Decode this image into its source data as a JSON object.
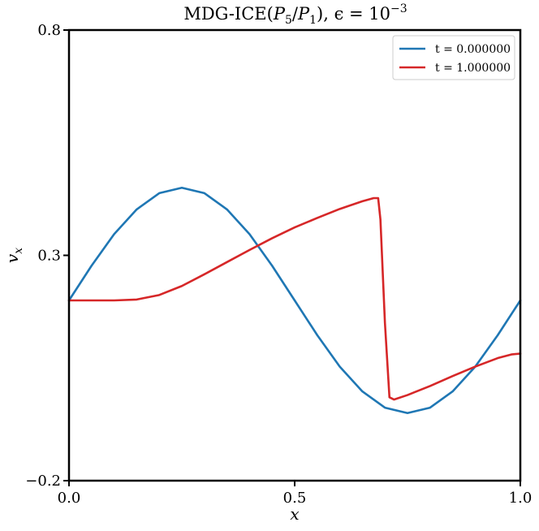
{
  "chart_data": {
    "type": "line",
    "title": "MDG-ICE(P5/P1), ε = 10^-3",
    "title_parts": {
      "prefix": "MDG-ICE(",
      "p_a": "P",
      "sub_a": "5",
      "slash": "/",
      "p_b": "P",
      "sub_b": "1",
      "mid": "), ϵ = 10",
      "sup": "−3"
    },
    "xlabel": "x",
    "ylabel": "v",
    "ylabel_sub": "x",
    "xlim": [
      0.0,
      1.0
    ],
    "ylim": [
      -0.2,
      0.8
    ],
    "xticks": [
      0.0,
      0.5,
      1.0
    ],
    "xtick_labels": [
      "0.0",
      "0.5",
      "1.0"
    ],
    "yticks": [
      -0.2,
      0.3,
      0.8
    ],
    "ytick_labels": [
      "−0.2",
      "0.3",
      "0.8"
    ],
    "grid": false,
    "legend_position": "top-right",
    "series": [
      {
        "name": "t = 0.000000",
        "color": "#1f77b4",
        "x": [
          0.0,
          0.05,
          0.1,
          0.15,
          0.2,
          0.25,
          0.3,
          0.35,
          0.4,
          0.45,
          0.5,
          0.55,
          0.6,
          0.65,
          0.7,
          0.75,
          0.8,
          0.85,
          0.9,
          0.95,
          1.0
        ],
        "y": [
          0.2,
          0.277,
          0.347,
          0.402,
          0.438,
          0.45,
          0.438,
          0.402,
          0.347,
          0.277,
          0.2,
          0.123,
          0.053,
          -0.002,
          -0.038,
          -0.05,
          -0.038,
          -0.002,
          0.053,
          0.123,
          0.2
        ]
      },
      {
        "name": "t = 1.000000",
        "color": "#d62728",
        "x": [
          0.0,
          0.05,
          0.1,
          0.15,
          0.2,
          0.25,
          0.3,
          0.35,
          0.4,
          0.45,
          0.5,
          0.55,
          0.6,
          0.65,
          0.675,
          0.685,
          0.69,
          0.7,
          0.71,
          0.72,
          0.75,
          0.8,
          0.85,
          0.9,
          0.95,
          0.98,
          1.0
        ],
        "y": [
          0.2,
          0.2,
          0.2,
          0.202,
          0.212,
          0.232,
          0.258,
          0.285,
          0.312,
          0.338,
          0.362,
          0.383,
          0.403,
          0.42,
          0.427,
          0.427,
          0.38,
          0.15,
          -0.015,
          -0.02,
          -0.01,
          0.01,
          0.032,
          0.053,
          0.072,
          0.08,
          0.082
        ]
      }
    ]
  }
}
